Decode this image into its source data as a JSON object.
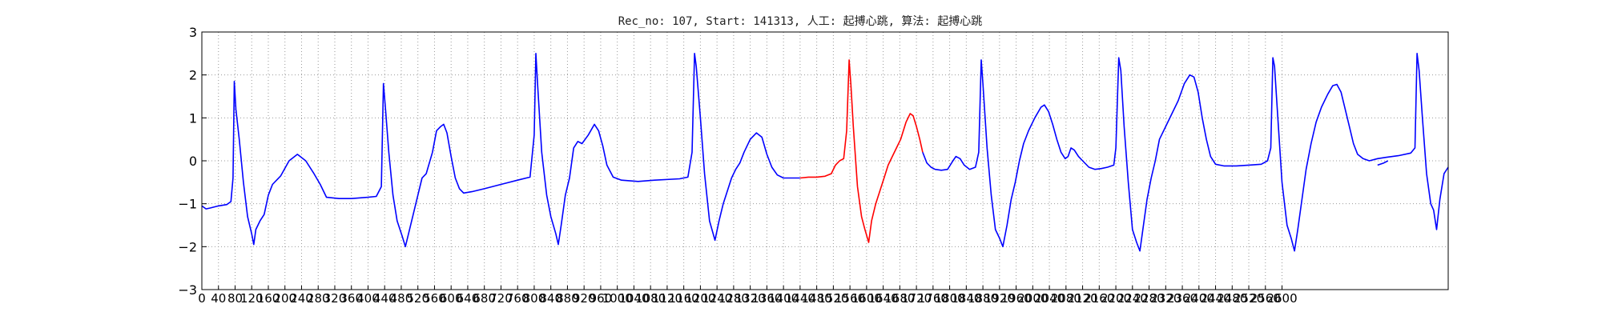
{
  "chart_data": {
    "type": "line",
    "title": "Rec_no: 107, Start: 141313, 人工: 起搏心跳, 算法: 起搏心跳",
    "xlabel": "",
    "ylabel": "",
    "xlim": [
      0,
      3000
    ],
    "ylim": [
      -3,
      3
    ],
    "grid": true,
    "y_ticks": [
      "3",
      "2",
      "1",
      "0",
      "−1",
      "−2",
      "−3"
    ],
    "x_ticks": [
      "0",
      "40",
      "80",
      "120",
      "160",
      "200",
      "240",
      "280",
      "320",
      "360",
      "400",
      "440",
      "480",
      "520",
      "560",
      "600",
      "640",
      "680",
      "720",
      "760",
      "800",
      "840",
      "880",
      "920",
      "960",
      "1000",
      "1040",
      "1080",
      "1120",
      "1160",
      "1200",
      "1240",
      "1280",
      "1320",
      "1360",
      "1400",
      "1440",
      "1480",
      "1520",
      "1560",
      "1600",
      "1640",
      "1680",
      "1720",
      "1760",
      "1800",
      "1840",
      "1880",
      "1920",
      "1960",
      "2000",
      "2040",
      "2080",
      "2120",
      "2160",
      "2200",
      "2240",
      "2280",
      "2320",
      "2360",
      "2400",
      "2440",
      "2480",
      "2520",
      "2560",
      "2600"
    ],
    "x_tick_spacing": 40,
    "colors": {
      "signal": "#0000ff",
      "highlight": "#ff0000",
      "grid": "#999999",
      "axis": "#000000"
    },
    "series": [
      {
        "color": "#0000ff",
        "points": [
          [
            0,
            -1.05
          ],
          [
            10,
            -1.12
          ],
          [
            20,
            -1.1
          ],
          [
            40,
            -1.05
          ],
          [
            60,
            -1.02
          ],
          [
            70,
            -0.95
          ],
          [
            75,
            -0.4
          ],
          [
            78,
            1.85
          ],
          [
            82,
            1.2
          ],
          [
            90,
            0.5
          ],
          [
            100,
            -0.5
          ],
          [
            110,
            -1.3
          ],
          [
            120,
            -1.7
          ],
          [
            125,
            -1.95
          ],
          [
            130,
            -1.6
          ],
          [
            140,
            -1.4
          ],
          [
            150,
            -1.25
          ],
          [
            160,
            -0.8
          ],
          [
            170,
            -0.55
          ],
          [
            190,
            -0.35
          ],
          [
            210,
            0.0
          ],
          [
            230,
            0.15
          ],
          [
            250,
            0.0
          ],
          [
            270,
            -0.3
          ],
          [
            285,
            -0.55
          ],
          [
            300,
            -0.85
          ],
          [
            330,
            -0.88
          ],
          [
            360,
            -0.88
          ],
          [
            400,
            -0.85
          ],
          [
            420,
            -0.83
          ],
          [
            432,
            -0.6
          ],
          [
            437,
            1.8
          ],
          [
            442,
            1.2
          ],
          [
            450,
            0.2
          ],
          [
            460,
            -0.8
          ],
          [
            470,
            -1.4
          ],
          [
            482,
            -1.75
          ],
          [
            490,
            -2.0
          ],
          [
            500,
            -1.6
          ],
          [
            510,
            -1.2
          ],
          [
            520,
            -0.8
          ],
          [
            530,
            -0.4
          ],
          [
            540,
            -0.3
          ],
          [
            555,
            0.2
          ],
          [
            565,
            0.7
          ],
          [
            575,
            0.8
          ],
          [
            582,
            0.85
          ],
          [
            590,
            0.65
          ],
          [
            600,
            0.1
          ],
          [
            610,
            -0.4
          ],
          [
            620,
            -0.65
          ],
          [
            630,
            -0.75
          ],
          [
            650,
            -0.72
          ],
          [
            680,
            -0.65
          ],
          [
            720,
            -0.55
          ],
          [
            760,
            -0.45
          ],
          [
            790,
            -0.38
          ],
          [
            800,
            0.6
          ],
          [
            804,
            2.5
          ],
          [
            808,
            1.8
          ],
          [
            818,
            0.2
          ],
          [
            830,
            -0.8
          ],
          [
            840,
            -1.3
          ],
          [
            852,
            -1.7
          ],
          [
            858,
            -1.95
          ],
          [
            865,
            -1.5
          ],
          [
            875,
            -0.8
          ],
          [
            885,
            -0.4
          ],
          [
            895,
            0.3
          ],
          [
            905,
            0.45
          ],
          [
            915,
            0.4
          ],
          [
            930,
            0.6
          ],
          [
            945,
            0.85
          ],
          [
            955,
            0.7
          ],
          [
            965,
            0.35
          ],
          [
            975,
            -0.1
          ],
          [
            990,
            -0.38
          ],
          [
            1010,
            -0.45
          ],
          [
            1050,
            -0.48
          ],
          [
            1090,
            -0.45
          ],
          [
            1150,
            -0.42
          ],
          [
            1170,
            -0.38
          ],
          [
            1180,
            0.2
          ],
          [
            1186,
            2.5
          ],
          [
            1190,
            2.2
          ],
          [
            1200,
            1.0
          ],
          [
            1210,
            -0.3
          ],
          [
            1222,
            -1.4
          ],
          [
            1235,
            -1.85
          ],
          [
            1245,
            -1.4
          ],
          [
            1255,
            -1.0
          ],
          [
            1265,
            -0.7
          ],
          [
            1275,
            -0.4
          ],
          [
            1285,
            -0.2
          ],
          [
            1295,
            -0.05
          ],
          [
            1305,
            0.2
          ],
          [
            1320,
            0.5
          ],
          [
            1335,
            0.65
          ],
          [
            1348,
            0.55
          ],
          [
            1360,
            0.15
          ],
          [
            1372,
            -0.15
          ],
          [
            1385,
            -0.33
          ],
          [
            1400,
            -0.4
          ],
          [
            1420,
            -0.4
          ],
          [
            1440,
            -0.4
          ]
        ]
      },
      {
        "color": "#ff0000",
        "points": [
          [
            1440,
            -0.4
          ],
          [
            1460,
            -0.38
          ],
          [
            1480,
            -0.38
          ],
          [
            1500,
            -0.36
          ],
          [
            1515,
            -0.3
          ],
          [
            1525,
            -0.1
          ],
          [
            1535,
            0.0
          ],
          [
            1545,
            0.05
          ],
          [
            1552,
            0.7
          ],
          [
            1558,
            2.35
          ],
          [
            1562,
            1.8
          ],
          [
            1568,
            0.8
          ],
          [
            1578,
            -0.6
          ],
          [
            1588,
            -1.3
          ],
          [
            1596,
            -1.6
          ],
          [
            1605,
            -1.9
          ],
          [
            1612,
            -1.4
          ],
          [
            1622,
            -1.0
          ],
          [
            1632,
            -0.7
          ],
          [
            1642,
            -0.4
          ],
          [
            1652,
            -0.1
          ],
          [
            1662,
            0.1
          ],
          [
            1672,
            0.3
          ],
          [
            1682,
            0.5
          ],
          [
            1695,
            0.9
          ],
          [
            1705,
            1.1
          ],
          [
            1712,
            1.05
          ],
          [
            1720,
            0.8
          ],
          [
            1728,
            0.5
          ],
          [
            1735,
            0.2
          ]
        ]
      },
      {
        "color": "#0000ff",
        "points": [
          [
            1735,
            0.2
          ],
          [
            1745,
            -0.05
          ],
          [
            1755,
            -0.15
          ],
          [
            1765,
            -0.2
          ],
          [
            1780,
            -0.22
          ],
          [
            1795,
            -0.2
          ],
          [
            1808,
            0.0
          ],
          [
            1815,
            0.1
          ],
          [
            1825,
            0.05
          ],
          [
            1835,
            -0.1
          ],
          [
            1848,
            -0.2
          ],
          [
            1862,
            -0.15
          ],
          [
            1870,
            0.2
          ],
          [
            1876,
            2.35
          ],
          [
            1880,
            1.8
          ],
          [
            1890,
            0.3
          ],
          [
            1900,
            -0.8
          ],
          [
            1910,
            -1.6
          ],
          [
            1920,
            -1.8
          ],
          [
            1928,
            -2.0
          ],
          [
            1938,
            -1.5
          ],
          [
            1948,
            -0.9
          ],
          [
            1958,
            -0.5
          ],
          [
            1968,
            0.0
          ],
          [
            1978,
            0.4
          ],
          [
            1990,
            0.7
          ],
          [
            2005,
            1.0
          ],
          [
            2020,
            1.25
          ],
          [
            2028,
            1.3
          ],
          [
            2038,
            1.15
          ],
          [
            2048,
            0.85
          ],
          [
            2058,
            0.5
          ],
          [
            2068,
            0.2
          ],
          [
            2078,
            0.05
          ],
          [
            2085,
            0.1
          ],
          [
            2092,
            0.3
          ],
          [
            2100,
            0.25
          ],
          [
            2110,
            0.1
          ],
          [
            2120,
            0.0
          ],
          [
            2135,
            -0.15
          ],
          [
            2150,
            -0.2
          ],
          [
            2165,
            -0.18
          ],
          [
            2180,
            -0.15
          ],
          [
            2195,
            -0.1
          ],
          [
            2200,
            0.3
          ],
          [
            2207,
            2.4
          ],
          [
            2212,
            2.1
          ],
          [
            2220,
            0.8
          ],
          [
            2230,
            -0.5
          ],
          [
            2240,
            -1.6
          ],
          [
            2250,
            -1.9
          ],
          [
            2258,
            -2.1
          ],
          [
            2265,
            -1.6
          ],
          [
            2275,
            -0.9
          ],
          [
            2285,
            -0.4
          ],
          [
            2295,
            0.0
          ],
          [
            2305,
            0.5
          ],
          [
            2320,
            0.8
          ],
          [
            2335,
            1.1
          ],
          [
            2350,
            1.4
          ],
          [
            2365,
            1.8
          ],
          [
            2378,
            2.0
          ],
          [
            2388,
            1.95
          ],
          [
            2398,
            1.6
          ],
          [
            2408,
            1.0
          ],
          [
            2418,
            0.5
          ],
          [
            2428,
            0.1
          ],
          [
            2440,
            -0.08
          ],
          [
            2460,
            -0.12
          ],
          [
            2490,
            -0.12
          ],
          [
            2520,
            -0.1
          ],
          [
            2550,
            -0.08
          ],
          [
            2565,
            0.0
          ],
          [
            2573,
            0.3
          ],
          [
            2578,
            2.4
          ],
          [
            2582,
            2.2
          ],
          [
            2590,
            1.0
          ],
          [
            2600,
            -0.5
          ],
          [
            2612,
            -1.5
          ],
          [
            2622,
            -1.8
          ],
          [
            2630,
            -2.1
          ],
          [
            2638,
            -1.6
          ],
          [
            2648,
            -0.9
          ],
          [
            2658,
            -0.2
          ],
          [
            2670,
            0.4
          ],
          [
            2682,
            0.9
          ],
          [
            2695,
            1.25
          ],
          [
            2710,
            1.55
          ],
          [
            2722,
            1.75
          ],
          [
            2732,
            1.78
          ],
          [
            2742,
            1.6
          ],
          [
            2752,
            1.2
          ],
          [
            2762,
            0.8
          ],
          [
            2772,
            0.4
          ],
          [
            2782,
            0.15
          ],
          [
            2795,
            0.05
          ],
          [
            2810,
            0.0
          ],
          [
            2830,
            0.05
          ],
          [
            2850,
            0.08
          ],
          [
            2880,
            0.12
          ],
          [
            2910,
            0.18
          ],
          [
            2920,
            0.3
          ],
          [
            2925,
            2.5
          ],
          [
            2930,
            2.1
          ],
          [
            2938,
            1.0
          ],
          [
            2948,
            -0.3
          ],
          [
            2958,
            -1.0
          ],
          [
            2965,
            -1.15
          ],
          [
            2972,
            -1.6
          ],
          [
            2980,
            -0.9
          ],
          [
            2990,
            -0.3
          ],
          [
            3000,
            -0.15
          ]
        ]
      },
      {
        "color": "#0000ff",
        "points": [
          [
            2830,
            -0.1
          ],
          [
            2845,
            -0.05
          ],
          [
            2855,
            0.0
          ]
        ]
      }
    ]
  }
}
